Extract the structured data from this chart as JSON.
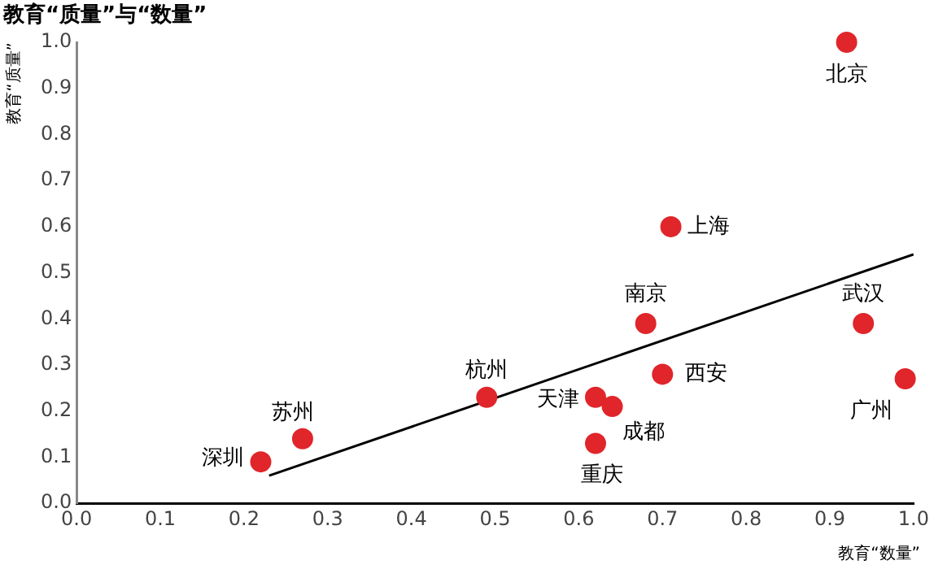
{
  "chart_data": {
    "type": "scatter",
    "title": "教育“质量”与“数量”",
    "xlabel": "教育“数量”",
    "ylabel": "教育“质量”",
    "x": [
      0.92,
      0.71,
      0.68,
      0.94,
      0.7,
      0.99,
      0.49,
      0.62,
      0.64,
      0.62,
      0.27,
      0.22
    ],
    "series": [
      {
        "color": "#e0262b",
        "marker": "circle",
        "values": [
          1.0,
          0.6,
          0.39,
          0.39,
          0.28,
          0.27,
          0.23,
          0.23,
          0.21,
          0.13,
          0.14,
          0.09
        ]
      },
      {
        "type": "line",
        "color": "#000000",
        "marker": "none",
        "x": [
          0.23,
          1.0
        ],
        "values": [
          0.06,
          0.54
        ]
      }
    ],
    "annotations": [
      {
        "text": "北京",
        "x": 0.92,
        "y": 1.0
      },
      {
        "text": "上海",
        "x": 0.71,
        "y": 0.6
      },
      {
        "text": "南京",
        "x": 0.68,
        "y": 0.39
      },
      {
        "text": "武汉",
        "x": 0.94,
        "y": 0.39
      },
      {
        "text": "西安",
        "x": 0.7,
        "y": 0.28
      },
      {
        "text": "广州",
        "x": 0.99,
        "y": 0.27
      },
      {
        "text": "杭州",
        "x": 0.49,
        "y": 0.23
      },
      {
        "text": "天津",
        "x": 0.62,
        "y": 0.23
      },
      {
        "text": "成都",
        "x": 0.64,
        "y": 0.21
      },
      {
        "text": "重庆",
        "x": 0.62,
        "y": 0.13
      },
      {
        "text": "苏州",
        "x": 0.27,
        "y": 0.14
      },
      {
        "text": "深圳",
        "x": 0.22,
        "y": 0.09
      }
    ],
    "xlim": [
      0,
      1
    ],
    "ylim": [
      0,
      1
    ],
    "xticks": [
      {
        "value": 0,
        "label": "0.0"
      },
      0.1,
      0.2,
      0.3,
      0.4,
      0.5,
      0.6,
      0.7,
      0.8,
      0.9,
      {
        "value": 1,
        "label": "1.0"
      }
    ],
    "yticks": [
      {
        "value": 0,
        "label": "0.0"
      },
      0.1,
      0.2,
      0.3,
      0.4,
      0.5,
      0.6,
      0.7,
      0.8,
      0.9,
      {
        "value": 1,
        "label": "1.0"
      }
    ],
    "grid": false,
    "legend": false
  }
}
